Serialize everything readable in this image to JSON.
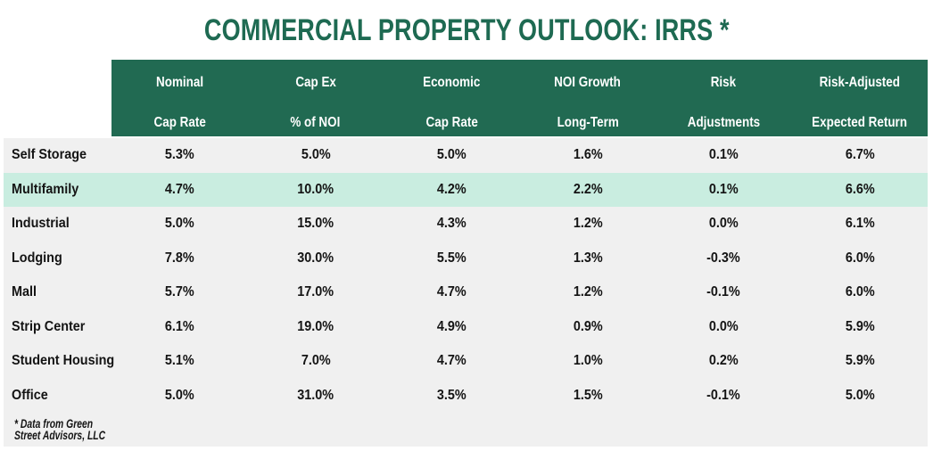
{
  "title": "COMMERCIAL PROPERTY OUTLOOK: IRRS *",
  "footnote": {
    "line1": "* Data from Green",
    "line2": "Street Advisors, LLC"
  },
  "colors": {
    "header_green": "#216a52",
    "title_green": "#1e6a52",
    "highlight_mint": "#c9ede0",
    "row_gray": "#f0f0f0",
    "header_text": "#ffffff",
    "body_text": "#141414",
    "page_background": "#ffffff"
  },
  "chart_data": {
    "type": "table",
    "title": "COMMERCIAL PROPERTY OUTLOOK: IRRS *",
    "columns": [
      {
        "line1": "Nominal",
        "line2": "Cap Rate"
      },
      {
        "line1": "Cap Ex",
        "line2": "% of NOI"
      },
      {
        "line1": "Economic",
        "line2": "Cap Rate"
      },
      {
        "line1": "NOI Growth",
        "line2": "Long-Term"
      },
      {
        "line1": "Risk",
        "line2": "Adjustments"
      },
      {
        "line1": "Risk-Adjusted",
        "line2": "Expected Return"
      }
    ],
    "rows": [
      {
        "label": "Self Storage",
        "highlighted": false,
        "values": [
          "5.3%",
          "5.0%",
          "5.0%",
          "1.6%",
          "0.1%",
          "6.7%"
        ]
      },
      {
        "label": "Multifamily",
        "highlighted": true,
        "values": [
          "4.7%",
          "10.0%",
          "4.2%",
          "2.2%",
          "0.1%",
          "6.6%"
        ]
      },
      {
        "label": "Industrial",
        "highlighted": false,
        "values": [
          "5.0%",
          "15.0%",
          "4.3%",
          "1.2%",
          "0.0%",
          "6.1%"
        ]
      },
      {
        "label": "Lodging",
        "highlighted": false,
        "values": [
          "7.8%",
          "30.0%",
          "5.5%",
          "1.3%",
          "-0.3%",
          "6.0%"
        ]
      },
      {
        "label": "Mall",
        "highlighted": false,
        "values": [
          "5.7%",
          "17.0%",
          "4.7%",
          "1.2%",
          "-0.1%",
          "6.0%"
        ]
      },
      {
        "label": "Strip Center",
        "highlighted": false,
        "values": [
          "6.1%",
          "19.0%",
          "4.9%",
          "0.9%",
          "0.0%",
          "5.9%"
        ]
      },
      {
        "label": "Student Housing",
        "highlighted": false,
        "values": [
          "5.1%",
          "7.0%",
          "4.7%",
          "1.0%",
          "0.2%",
          "5.9%"
        ]
      },
      {
        "label": "Office",
        "highlighted": false,
        "values": [
          "5.0%",
          "31.0%",
          "3.5%",
          "1.5%",
          "-0.1%",
          "5.0%"
        ]
      }
    ],
    "footnote": "* Data from Green Street Advisors, LLC"
  }
}
